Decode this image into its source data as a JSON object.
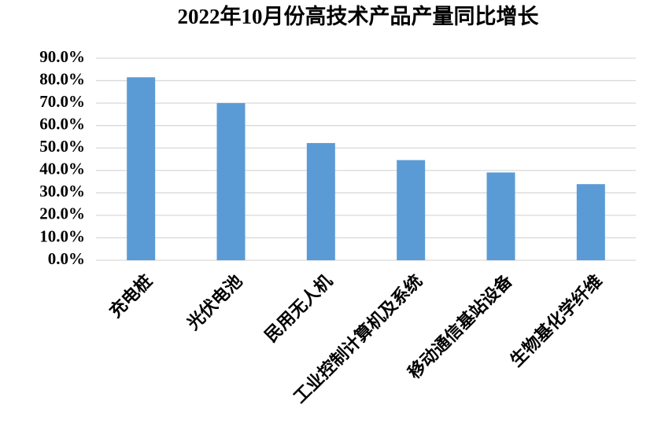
{
  "chart_data": {
    "type": "bar",
    "title": "2022年10月份高技术产品产量同比增长",
    "categories": [
      "充电桩",
      "光伏电池",
      "民用无人机",
      "工业控制计算机及系统",
      "移动通信基站设备",
      "生物基化学纤维"
    ],
    "values": [
      81.5,
      70,
      52.2,
      44.6,
      39.1,
      33.9
    ],
    "color": "#5b9bd5",
    "ylim": [
      0,
      90
    ],
    "yticks": [
      {
        "value": 0,
        "label": "0.0%"
      },
      {
        "value": 10,
        "label": "10.0%"
      },
      {
        "value": 20,
        "label": "20.0%"
      },
      {
        "value": 30,
        "label": "30.0%"
      },
      {
        "value": 40,
        "label": "40.0%"
      },
      {
        "value": 50,
        "label": "50.0%"
      },
      {
        "value": 60,
        "label": "60.0%"
      },
      {
        "value": 70,
        "label": "70.0%"
      },
      {
        "value": 80,
        "label": "80.0%"
      },
      {
        "value": 90,
        "label": "90.0%"
      }
    ],
    "grid": true
  }
}
